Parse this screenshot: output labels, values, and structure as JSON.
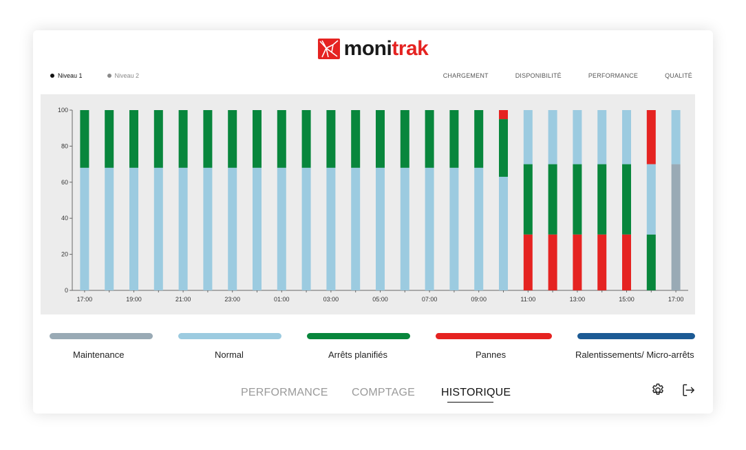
{
  "brand": {
    "name_part1": "moni",
    "name_part2": "trak",
    "color": "#e52321"
  },
  "levels": [
    {
      "label": "Niveau 1",
      "active": true
    },
    {
      "label": "Niveau 2",
      "active": false
    }
  ],
  "kpis": [
    "CHARGEMENT",
    "DISPONIBILITÉ",
    "PERFORMANCE",
    "QUALITÉ"
  ],
  "legend": [
    {
      "label": "Maintenance",
      "color": "#99aab5"
    },
    {
      "label": "Normal",
      "color": "#9ccbe0"
    },
    {
      "label": "Arrêts planifiés",
      "color": "#08863c"
    },
    {
      "label": "Pannes",
      "color": "#e52321"
    },
    {
      "label": "Ralentissements/ Micro-arrêts",
      "color": "#1c5a94"
    }
  ],
  "nav": {
    "tabs": [
      "PERFORMANCE",
      "COMPTAGE",
      "HISTORIQUE"
    ],
    "active": "HISTORIQUE"
  },
  "icons": {
    "settings": "gear-icon",
    "logout": "logout-icon"
  },
  "chart_data": {
    "type": "bar",
    "stacked": true,
    "ylim": [
      0,
      100
    ],
    "yticks": [
      0,
      20,
      40,
      60,
      80,
      100
    ],
    "xticks": [
      "17:00",
      "19:00",
      "21:00",
      "23:00",
      "01:00",
      "03:00",
      "05:00",
      "07:00",
      "09:00",
      "11:00",
      "13:00",
      "15:00",
      "17:00"
    ],
    "categories": [
      "17:00",
      "18:00",
      "19:00",
      "20:00",
      "21:00",
      "22:00",
      "23:00",
      "00:00",
      "01:00",
      "02:00",
      "03:00",
      "04:00",
      "05:00",
      "06:00",
      "07:00",
      "08:00",
      "09:00",
      "10:00",
      "11:00",
      "12:00",
      "13:00",
      "14:00",
      "15:00",
      "16:00",
      "17:00"
    ],
    "series": [
      {
        "name": "Maintenance",
        "color": "#99aab5",
        "values": [
          0,
          0,
          0,
          0,
          0,
          0,
          0,
          0,
          0,
          0,
          0,
          0,
          0,
          0,
          0,
          0,
          0,
          0,
          0,
          0,
          0,
          0,
          0,
          0,
          70
        ]
      },
      {
        "name": "Pannes",
        "color": "#e52321",
        "values": [
          0,
          0,
          0,
          0,
          0,
          0,
          0,
          0,
          0,
          0,
          0,
          0,
          0,
          0,
          0,
          0,
          0,
          0,
          31,
          31,
          31,
          31,
          31,
          0,
          0
        ]
      },
      {
        "name": "Arrêts planifiés",
        "color": "#08863c",
        "values": [
          0,
          0,
          0,
          0,
          0,
          0,
          0,
          0,
          0,
          0,
          0,
          0,
          0,
          0,
          0,
          0,
          0,
          0,
          39,
          39,
          39,
          39,
          39,
          31,
          0
        ]
      },
      {
        "name": "Normal",
        "color": "#9ccbe0",
        "values": [
          68,
          68,
          68,
          68,
          68,
          68,
          68,
          68,
          68,
          68,
          68,
          68,
          68,
          68,
          68,
          68,
          68,
          63,
          0,
          0,
          0,
          0,
          0,
          39,
          0
        ]
      },
      {
        "name": "Arrêts planifiés",
        "color": "#08863c",
        "values": [
          32,
          32,
          32,
          32,
          32,
          32,
          32,
          32,
          32,
          32,
          32,
          32,
          32,
          32,
          32,
          32,
          32,
          32,
          0,
          0,
          0,
          0,
          0,
          0,
          0
        ]
      },
      {
        "name": "Pannes",
        "color": "#e52321",
        "values": [
          0,
          0,
          0,
          0,
          0,
          0,
          0,
          0,
          0,
          0,
          0,
          0,
          0,
          0,
          0,
          0,
          0,
          5,
          0,
          0,
          0,
          0,
          0,
          30,
          0
        ]
      },
      {
        "name": "Normal",
        "color": "#9ccbe0",
        "values": [
          0,
          0,
          0,
          0,
          0,
          0,
          0,
          0,
          0,
          0,
          0,
          0,
          0,
          0,
          0,
          0,
          0,
          0,
          30,
          30,
          30,
          30,
          30,
          0,
          30
        ]
      }
    ]
  }
}
